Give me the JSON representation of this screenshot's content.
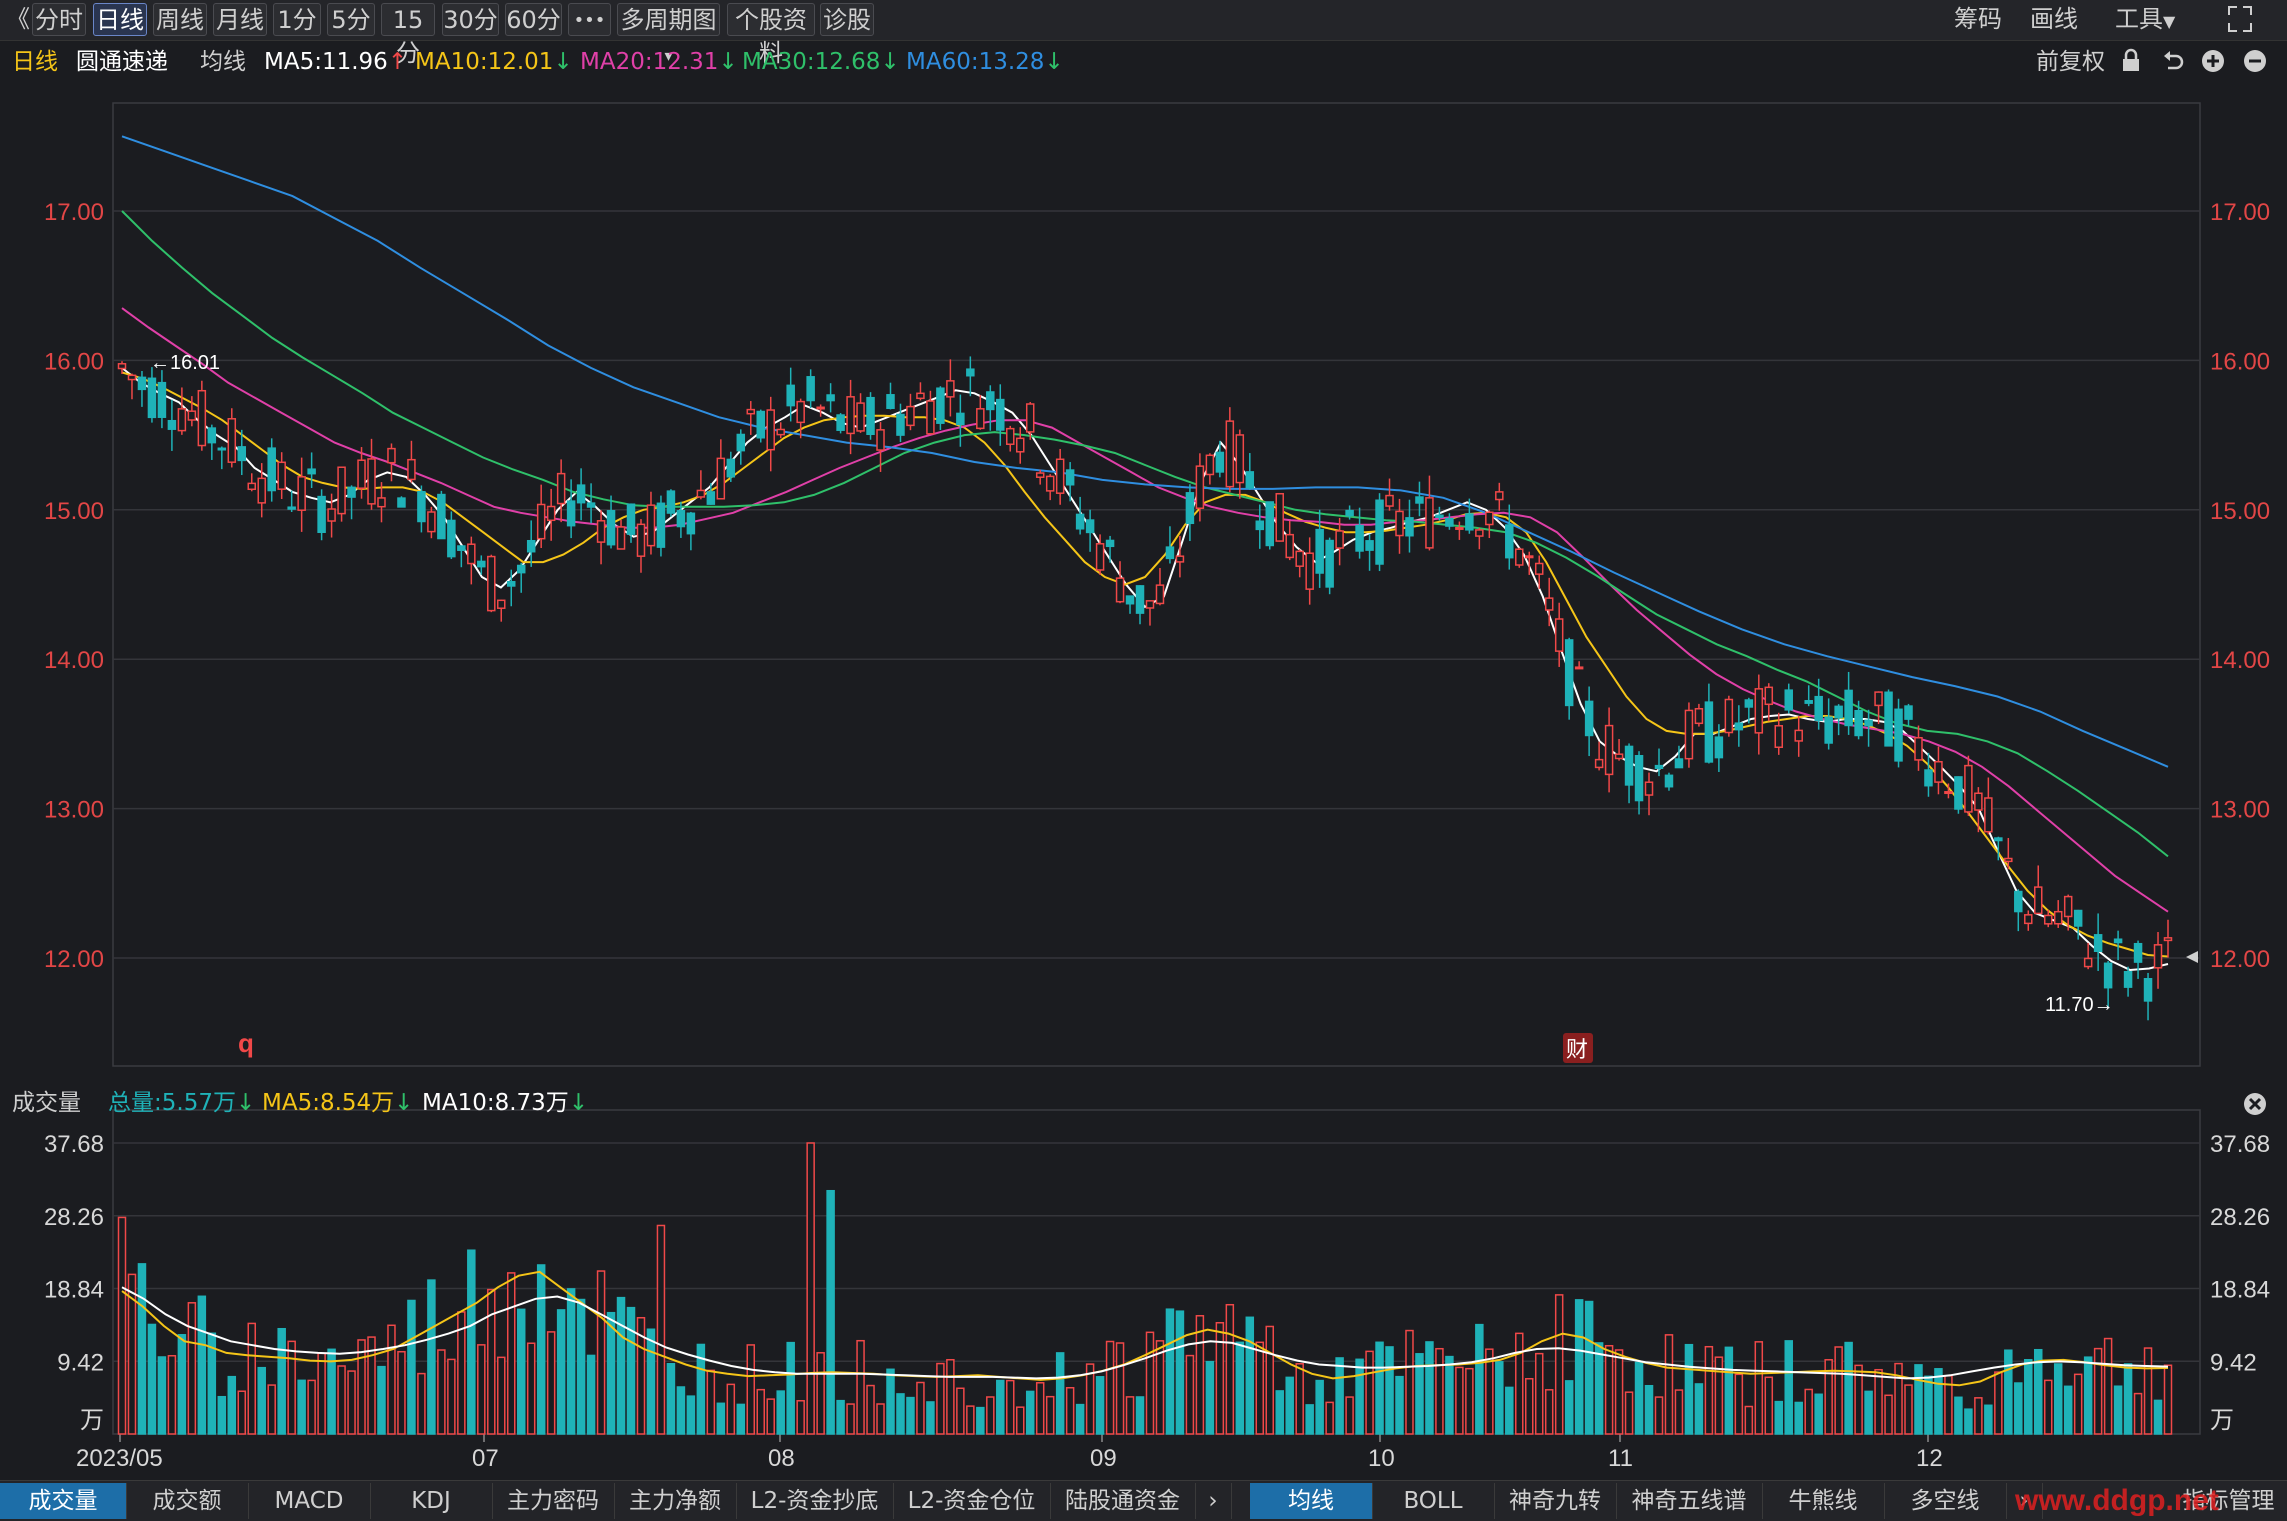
{
  "toolbar": {
    "collapse": "《",
    "buttons": [
      "分时",
      "日线",
      "周线",
      "月线",
      "1分",
      "5分",
      "15分",
      "30分",
      "60分",
      "•••",
      "多周期图",
      "个股资料",
      "诊股"
    ],
    "active": "日线",
    "right": [
      "筹码",
      "画线",
      "工具"
    ]
  },
  "info": {
    "period": "日线",
    "stock_name": "圆通速递",
    "ma_label": "均线",
    "ma5": "MA5:11.96",
    "ma10": "MA10:12.01",
    "ma20": "MA20:12.31",
    "ma30": "MA30:12.68",
    "ma60": "MA60:13.28",
    "adjust": "前复权"
  },
  "volume_info": {
    "label": "成交量",
    "total": "总量:5.57万",
    "ma5": "MA5:8.54万",
    "ma10": "MA10:8.73万"
  },
  "bottom_tabs": [
    "成交量",
    "成交额",
    "MACD",
    "KDJ",
    "主力密码",
    "主力净额",
    "L2-资金抄底",
    "L2-资金仓位",
    "陆股通资金"
  ],
  "bottom_tabs2": [
    "均线",
    "BOLL",
    "神奇九转",
    "神奇五线谱",
    "牛熊线",
    "多空线"
  ],
  "bottom_right": "指标管理",
  "watermark": "www.ddgp.net",
  "markers": {
    "q": "q",
    "cai": "财"
  },
  "colors": {
    "up": "#f04848",
    "down": "#1fb2b8",
    "ma5": "#ffffff",
    "ma10": "#f5c518",
    "ma20": "#e040a8",
    "ma30": "#2fc06a",
    "ma60": "#2f8ee0",
    "axis_text": "#e24646"
  },
  "chart_data": [
    {
      "type": "candlestick",
      "title": "圆通速递 日线",
      "y_ticks": [
        "17.00",
        "16.00",
        "15.00",
        "14.00",
        "13.00",
        "12.00"
      ],
      "ylim": [
        11.45,
        17.75
      ],
      "x_labels": [
        "2023/05",
        "07",
        "08",
        "09",
        "10",
        "11",
        "12"
      ],
      "annotations": {
        "high": "←16.01",
        "low": "11.70→"
      },
      "ma_series": [
        {
          "name": "MA5",
          "values": [
            15.95,
            15.85,
            15.78,
            15.72,
            15.6,
            15.5,
            15.42,
            15.28,
            15.2,
            15.12,
            15.08,
            15.05,
            15.1,
            15.2,
            15.25,
            15.22,
            15.1,
            14.95,
            14.75,
            14.55,
            14.48,
            14.6,
            14.8,
            15.0,
            15.12,
            15.02,
            14.9,
            14.82,
            14.85,
            14.95,
            15.05,
            15.15,
            15.3,
            15.45,
            15.55,
            15.62,
            15.7,
            15.65,
            15.58,
            15.55,
            15.6,
            15.65,
            15.7,
            15.75,
            15.8,
            15.78,
            15.72,
            15.65,
            15.5,
            15.3,
            15.1,
            14.9,
            14.7,
            14.5,
            14.35,
            14.42,
            14.8,
            15.2,
            15.45,
            15.3,
            15.1,
            14.9,
            14.75,
            14.65,
            14.72,
            14.8,
            14.85,
            14.88,
            14.92,
            14.95,
            15.0,
            15.05,
            15.0,
            14.88,
            14.7,
            14.42,
            14.05,
            13.7,
            13.45,
            13.35,
            13.28,
            13.25,
            13.35,
            13.5,
            13.5,
            13.55,
            13.6,
            13.62,
            13.63,
            13.6,
            13.58,
            13.6,
            13.6,
            13.58,
            13.52,
            13.4,
            13.28,
            13.15,
            13.0,
            12.72,
            12.45,
            12.3,
            12.25,
            12.2,
            12.08,
            11.98,
            11.92,
            11.93,
            11.96
          ]
        },
        {
          "name": "MA10",
          "values": [
            15.92,
            15.88,
            15.82,
            15.75,
            15.68,
            15.6,
            15.5,
            15.4,
            15.3,
            15.22,
            15.18,
            15.15,
            15.14,
            15.15,
            15.15,
            15.12,
            15.05,
            14.95,
            14.85,
            14.75,
            14.65,
            14.65,
            14.7,
            14.78,
            14.88,
            14.95,
            15.0,
            15.02,
            15.05,
            15.1,
            15.18,
            15.28,
            15.38,
            15.48,
            15.55,
            15.6,
            15.62,
            15.63,
            15.63,
            15.62,
            15.62,
            15.6,
            15.55,
            15.45,
            15.3,
            15.12,
            14.95,
            14.8,
            14.65,
            14.55,
            14.5,
            14.55,
            14.7,
            14.9,
            15.05,
            15.1,
            15.1,
            15.05,
            14.98,
            14.92,
            14.88,
            14.85,
            14.85,
            14.86,
            14.88,
            14.9,
            14.93,
            14.97,
            14.98,
            14.95,
            14.85,
            14.65,
            14.4,
            14.15,
            13.95,
            13.75,
            13.6,
            13.52,
            13.5,
            13.5,
            13.52,
            13.55,
            13.58,
            13.6,
            13.62,
            13.62,
            13.6,
            13.56,
            13.5,
            13.42,
            13.3,
            13.15,
            12.98,
            12.8,
            12.62,
            12.45,
            12.32,
            12.22,
            12.15,
            12.1,
            12.06,
            12.02,
            12.01
          ]
        },
        {
          "name": "MA20",
          "values": [
            16.35,
            16.22,
            16.1,
            15.98,
            15.85,
            15.75,
            15.65,
            15.55,
            15.45,
            15.38,
            15.32,
            15.25,
            15.18,
            15.1,
            15.02,
            14.98,
            14.95,
            14.92,
            14.9,
            14.88,
            14.88,
            14.9,
            14.94,
            14.98,
            15.05,
            15.12,
            15.2,
            15.28,
            15.35,
            15.42,
            15.48,
            15.53,
            15.57,
            15.6,
            15.6,
            15.55,
            15.45,
            15.35,
            15.25,
            15.15,
            15.08,
            15.02,
            14.98,
            14.95,
            14.93,
            14.92,
            14.9,
            14.9,
            14.92,
            14.93,
            14.95,
            14.97,
            14.98,
            14.95,
            14.85,
            14.68,
            14.5,
            14.33,
            14.18,
            14.03,
            13.9,
            13.8,
            13.72,
            13.65,
            13.6,
            13.56,
            13.53,
            13.5,
            13.45,
            13.38,
            13.28,
            13.15,
            13.0,
            12.85,
            12.7,
            12.55,
            12.43,
            12.31
          ]
        },
        {
          "name": "MA30",
          "values": [
            17.0,
            16.8,
            16.62,
            16.45,
            16.3,
            16.15,
            16.02,
            15.9,
            15.78,
            15.65,
            15.55,
            15.45,
            15.35,
            15.27,
            15.2,
            15.12,
            15.07,
            15.03,
            15.02,
            15.02,
            15.02,
            15.03,
            15.05,
            15.1,
            15.18,
            15.28,
            15.38,
            15.45,
            15.5,
            15.52,
            15.5,
            15.47,
            15.43,
            15.38,
            15.3,
            15.22,
            15.15,
            15.1,
            15.05,
            15.0,
            14.97,
            14.95,
            14.93,
            14.92,
            14.9,
            14.88,
            14.85,
            14.78,
            14.68,
            14.56,
            14.43,
            14.3,
            14.2,
            14.1,
            14.02,
            13.93,
            13.85,
            13.75,
            13.65,
            13.57,
            13.52,
            13.5,
            13.45,
            13.37,
            13.25,
            13.12,
            12.98,
            12.84,
            12.68
          ]
        },
        {
          "name": "MA60",
          "values": [
            17.5,
            17.4,
            17.3,
            17.2,
            17.1,
            16.95,
            16.8,
            16.62,
            16.45,
            16.28,
            16.1,
            15.95,
            15.82,
            15.72,
            15.62,
            15.55,
            15.5,
            15.45,
            15.42,
            15.38,
            15.32,
            15.28,
            15.25,
            15.2,
            15.17,
            15.15,
            15.14,
            15.14,
            15.15,
            15.15,
            15.13,
            15.08,
            14.98,
            14.85,
            14.72,
            14.58,
            14.45,
            14.32,
            14.2,
            14.1,
            14.02,
            13.95,
            13.88,
            13.82,
            13.75,
            13.65,
            13.52,
            13.4,
            13.28
          ]
        }
      ]
    },
    {
      "type": "bar",
      "title": "成交量",
      "unit": "万",
      "y_ticks": [
        "37.68",
        "28.26",
        "18.84",
        "9.42"
      ],
      "ylim": [
        0,
        37.68
      ],
      "volume_ma5": [
        18.5,
        16.5,
        14.0,
        12.0,
        11.5,
        10.5,
        10.2,
        10.0,
        9.8,
        9.5,
        9.4,
        9.6,
        10.2,
        11.0,
        12.5,
        14.0,
        15.5,
        17.0,
        19.0,
        20.5,
        21.0,
        19.0,
        17.0,
        15.0,
        12.5,
        11.0,
        10.0,
        9.0,
        8.2,
        7.8,
        7.5,
        7.6,
        7.7,
        7.9,
        8.0,
        7.9,
        7.8,
        7.6,
        7.5,
        7.4,
        7.5,
        7.6,
        7.4,
        7.2,
        7.0,
        7.2,
        7.6,
        8.2,
        9.0,
        10.2,
        11.5,
        12.8,
        13.5,
        13.0,
        12.0,
        10.5,
        9.0,
        7.8,
        7.2,
        7.5,
        8.0,
        8.5,
        8.8,
        8.9,
        9.0,
        9.2,
        9.6,
        10.5,
        12.0,
        13.0,
        12.5,
        11.0,
        10.0,
        9.2,
        8.6,
        8.4,
        8.2,
        8.0,
        7.8,
        7.9,
        8.0,
        8.1,
        8.2,
        8.1,
        8.0,
        7.6,
        7.0,
        6.5,
        6.3,
        6.8,
        8.0,
        9.0,
        9.5,
        9.6,
        9.3,
        8.9,
        8.6,
        8.5,
        8.54
      ],
      "volume_ma10": [
        19.0,
        17.5,
        15.5,
        14.0,
        13.0,
        12.0,
        11.5,
        11.0,
        10.7,
        10.5,
        10.4,
        10.6,
        11.0,
        11.5,
        12.2,
        13.0,
        14.0,
        15.5,
        16.5,
        17.5,
        17.8,
        17.0,
        15.5,
        14.0,
        12.5,
        11.2,
        10.3,
        9.5,
        8.8,
        8.3,
        8.0,
        7.8,
        7.8,
        7.8,
        7.8,
        7.7,
        7.6,
        7.5,
        7.4,
        7.4,
        7.4,
        7.3,
        7.2,
        7.3,
        7.6,
        8.1,
        8.9,
        9.8,
        10.8,
        11.6,
        12.0,
        11.8,
        11.0,
        10.2,
        9.5,
        9.0,
        8.8,
        8.6,
        8.6,
        8.7,
        8.8,
        9.0,
        9.3,
        9.8,
        10.5,
        11.0,
        11.1,
        10.8,
        10.3,
        9.8,
        9.3,
        9.0,
        8.7,
        8.5,
        8.3,
        8.2,
        8.1,
        8.0,
        7.9,
        7.8,
        7.6,
        7.4,
        7.2,
        7.3,
        7.6,
        8.1,
        8.6,
        9.0,
        9.3,
        9.4,
        9.3,
        9.1,
        8.9,
        8.8,
        8.73
      ]
    }
  ]
}
